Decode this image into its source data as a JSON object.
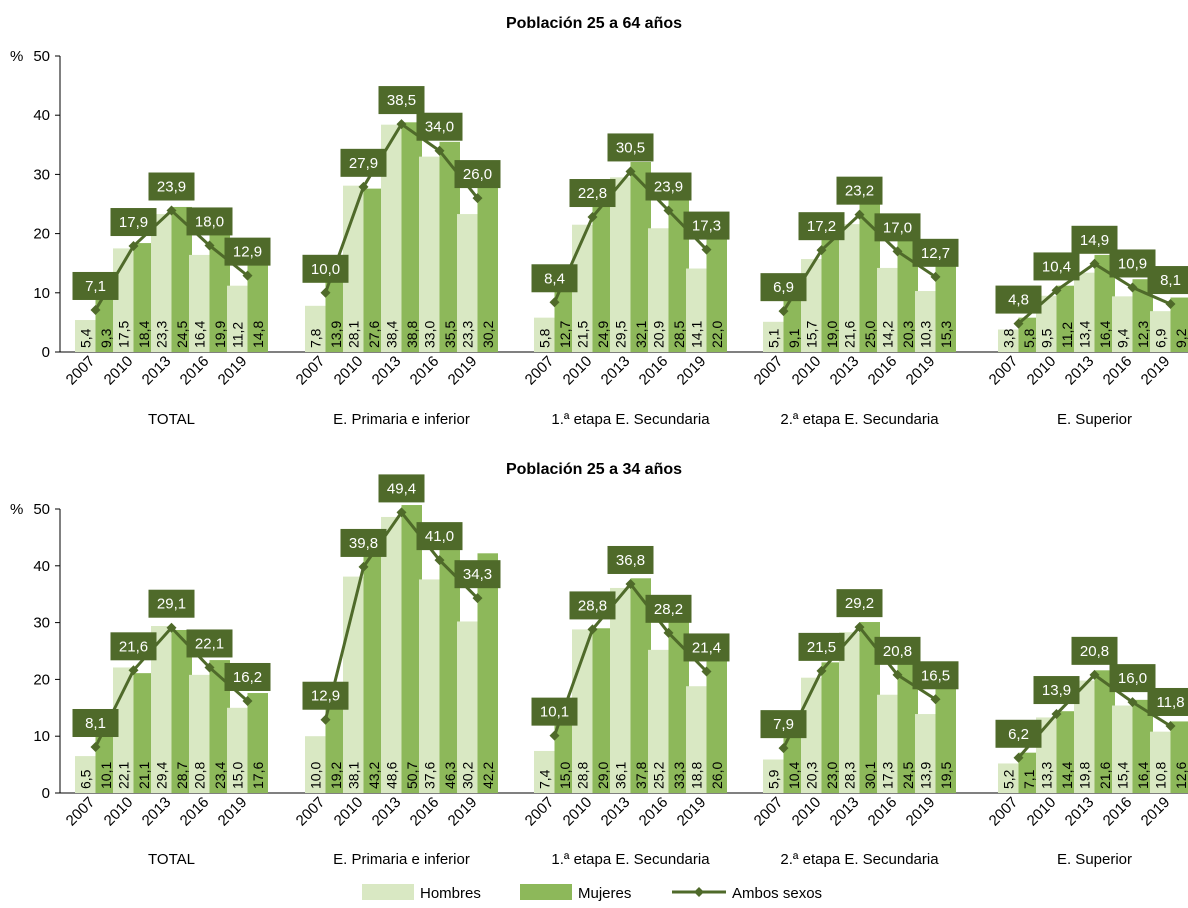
{
  "chart_data": [
    {
      "type": "bar",
      "title": "Población 25 a 64 años",
      "ylabel": "%",
      "ylim": [
        0,
        50
      ],
      "yticks": [
        0,
        10,
        20,
        30,
        40,
        50
      ],
      "years": [
        "2007",
        "2010",
        "2013",
        "2016",
        "2019"
      ],
      "groups": [
        {
          "name": "TOTAL",
          "hombres": [
            5.4,
            17.5,
            23.3,
            16.4,
            11.2
          ],
          "mujeres": [
            9.3,
            18.4,
            24.5,
            19.9,
            14.8
          ],
          "ambos": [
            7.1,
            17.9,
            23.9,
            18.0,
            12.9
          ]
        },
        {
          "name": "E. Primaria e inferior",
          "hombres": [
            7.8,
            28.1,
            38.4,
            33.0,
            23.3
          ],
          "mujeres": [
            13.9,
            27.6,
            38.8,
            35.5,
            30.2
          ],
          "ambos": [
            10.0,
            27.9,
            38.5,
            34.0,
            26.0
          ]
        },
        {
          "name": "1.ª etapa E. Secundaria",
          "hombres": [
            5.8,
            21.5,
            29.5,
            20.9,
            14.1
          ],
          "mujeres": [
            12.7,
            24.9,
            32.1,
            28.5,
            22.0
          ],
          "ambos": [
            8.4,
            22.8,
            30.5,
            23.9,
            17.3
          ]
        },
        {
          "name": "2.ª etapa E. Secundaria",
          "hombres": [
            5.1,
            15.7,
            21.6,
            14.2,
            10.3
          ],
          "mujeres": [
            9.1,
            19.0,
            25.0,
            20.3,
            15.3
          ],
          "ambos": [
            6.9,
            17.2,
            23.2,
            17.0,
            12.7
          ]
        },
        {
          "name": "E. Superior",
          "hombres": [
            3.8,
            9.5,
            13.4,
            9.4,
            6.9
          ],
          "mujeres": [
            5.8,
            11.2,
            16.4,
            12.3,
            9.2
          ],
          "ambos": [
            4.8,
            10.4,
            14.9,
            10.9,
            8.1
          ]
        }
      ],
      "series": [
        {
          "name": "Hombres",
          "key": "hombres",
          "kind": "bar"
        },
        {
          "name": "Mujeres",
          "key": "mujeres",
          "kind": "bar"
        },
        {
          "name": "Ambos sexos",
          "key": "ambos",
          "kind": "line"
        }
      ]
    },
    {
      "type": "bar",
      "title": "Población 25 a 34 años",
      "ylabel": "%",
      "ylim": [
        0,
        50
      ],
      "yticks": [
        0,
        10,
        20,
        30,
        40,
        50
      ],
      "years": [
        "2007",
        "2010",
        "2013",
        "2016",
        "2019"
      ],
      "groups": [
        {
          "name": "TOTAL",
          "hombres": [
            6.5,
            22.1,
            29.4,
            20.8,
            15.0
          ],
          "mujeres": [
            10.1,
            21.1,
            28.7,
            23.4,
            17.6
          ],
          "ambos": [
            8.1,
            21.6,
            29.1,
            22.1,
            16.2
          ]
        },
        {
          "name": "E. Primaria e inferior",
          "hombres": [
            10.0,
            38.1,
            48.6,
            37.6,
            30.2
          ],
          "mujeres": [
            19.2,
            43.2,
            50.7,
            46.3,
            42.2
          ],
          "ambos": [
            12.9,
            39.8,
            49.4,
            41.0,
            34.3
          ]
        },
        {
          "name": "1.ª etapa E. Secundaria",
          "hombres": [
            7.4,
            28.8,
            36.1,
            25.2,
            18.8
          ],
          "mujeres": [
            15.0,
            29.0,
            37.8,
            33.3,
            26.0
          ],
          "ambos": [
            10.1,
            28.8,
            36.8,
            28.2,
            21.4
          ]
        },
        {
          "name": "2.ª etapa E. Secundaria",
          "hombres": [
            5.9,
            20.3,
            28.3,
            17.3,
            13.9
          ],
          "mujeres": [
            10.4,
            23.0,
            30.1,
            24.5,
            19.5
          ],
          "ambos": [
            7.9,
            21.5,
            29.2,
            20.8,
            16.5
          ]
        },
        {
          "name": "E. Superior",
          "hombres": [
            5.2,
            13.3,
            19.8,
            15.4,
            10.8
          ],
          "mujeres": [
            7.1,
            14.4,
            21.6,
            16.4,
            12.6
          ],
          "ambos": [
            6.2,
            13.9,
            20.8,
            16.0,
            11.8
          ]
        }
      ],
      "series": [
        {
          "name": "Hombres",
          "key": "hombres",
          "kind": "bar"
        },
        {
          "name": "Mujeres",
          "key": "mujeres",
          "kind": "bar"
        },
        {
          "name": "Ambos sexos",
          "key": "ambos",
          "kind": "line"
        }
      ]
    }
  ],
  "legend": {
    "position": "bottom",
    "items": [
      {
        "label": "Hombres",
        "color": "#d9e8c3"
      },
      {
        "label": "Mujeres",
        "color": "#8db85a"
      },
      {
        "label": "Ambos sexos",
        "color": "#4f6a2a"
      }
    ]
  },
  "colors": {
    "hombres": "#d9e8c3",
    "mujeres": "#8db85a",
    "ambos": "#4f6a2a"
  }
}
